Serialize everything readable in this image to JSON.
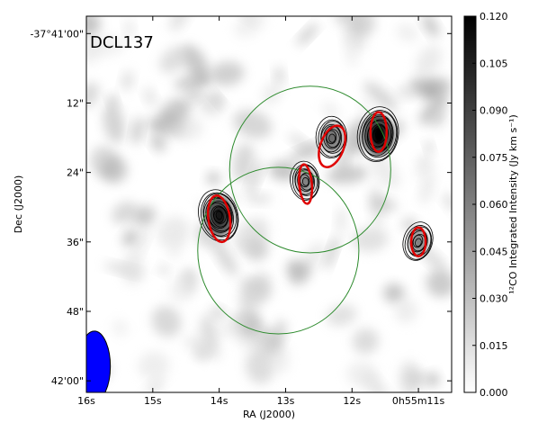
{
  "chart_data": {
    "type": "heatmap",
    "title": "DCL137",
    "xlabel": "RA (J2000)",
    "ylabel": "Dec (J2000)",
    "colorbar_label": "¹²CO Integrated Intensity (Jy km s⁻¹)",
    "x_ticks": [
      "16s",
      "15s",
      "14s",
      "13s",
      "12s",
      "0h55m11s"
    ],
    "y_ticks": [
      "-37°41'00\"",
      "12\"",
      "24\"",
      "36\"",
      "48\"",
      "42'00\""
    ],
    "colorbar_ticks": [
      "0.120",
      "0.105",
      "0.090",
      "0.075",
      "0.060",
      "0.045",
      "0.030",
      "0.015",
      "0.000"
    ],
    "colorbar_range": [
      0.0,
      0.12
    ],
    "colormap": "gray_r",
    "xlim_s": [
      16.0,
      10.5
    ],
    "ylim_arcsec": [
      62.0,
      -3.0
    ],
    "primary_beams": [
      {
        "ra_s": 13.11,
        "dec_arcsec": 37.5,
        "radius_arcsec": 14.4
      },
      {
        "ra_s": 12.63,
        "dec_arcsec": 23.5,
        "radius_arcsec": 14.4
      }
    ],
    "beam": {
      "ra_s": 15.88,
      "dec_arcsec": 57.5,
      "major_arcsec": 5.8,
      "minor_arcsec": 2.6
    },
    "cores": [
      {
        "ra_s": 14.0,
        "dec_arcsec": 31.5,
        "peak": 0.11
      },
      {
        "ra_s": 12.7,
        "dec_arcsec": 25.5,
        "peak": 0.06
      },
      {
        "ra_s": 12.3,
        "dec_arcsec": 18.0,
        "peak": 0.07
      },
      {
        "ra_s": 11.6,
        "dec_arcsec": 17.5,
        "peak": 0.12
      },
      {
        "ra_s": 11.0,
        "dec_arcsec": 36.0,
        "peak": 0.06
      }
    ],
    "fitted_ellipses": [
      {
        "ra_s": 14.0,
        "dec_arcsec": 32.0
      },
      {
        "ra_s": 12.7,
        "dec_arcsec": 26.0
      },
      {
        "ra_s": 12.3,
        "dec_arcsec": 19.5
      },
      {
        "ra_s": 11.6,
        "dec_arcsec": 17.0
      },
      {
        "ra_s": 11.0,
        "dec_arcsec": 36.0
      }
    ],
    "colors": {
      "primary_beam": "#2e8b2e",
      "fitted_ellipse": "#e00000",
      "contour": "#000000",
      "beam": "#0000ff"
    }
  }
}
